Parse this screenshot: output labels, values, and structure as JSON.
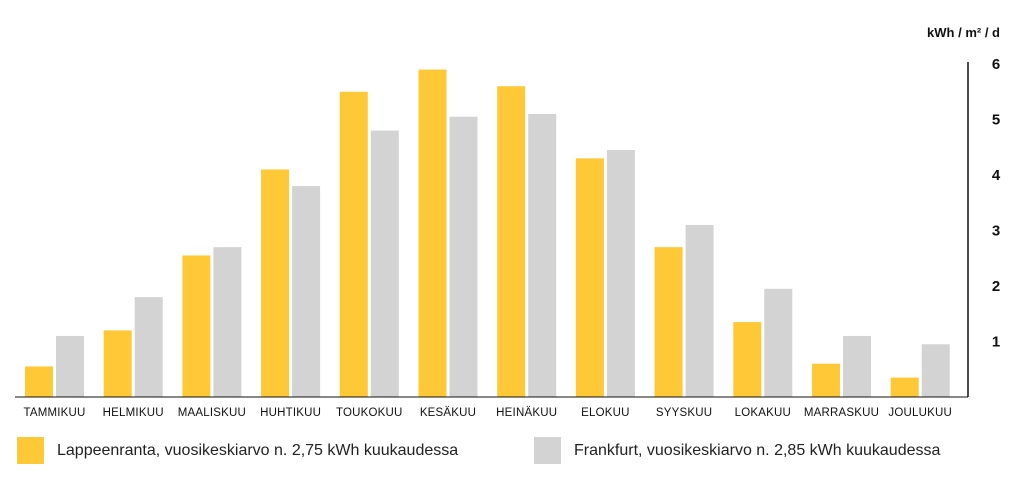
{
  "chart_data": {
    "type": "bar",
    "unit": "kWh / m² / d",
    "categories": [
      "TAMMIKUU",
      "HELMIKUU",
      "MAALISKUU",
      "HUHTIKUU",
      "TOUKOKUU",
      "KESÄKUU",
      "HEINÄKUU",
      "ELOKUU",
      "SYYSKUU",
      "LOKAKUU",
      "MARRASKUU",
      "JOULUKUU"
    ],
    "series": [
      {
        "name": "Lappeenranta, vuosikeskiarvo n. 2,75 kWh kuukaudessa",
        "color": "#ffc836",
        "values": [
          0.55,
          1.2,
          2.55,
          4.1,
          5.5,
          5.9,
          5.6,
          4.3,
          2.7,
          1.35,
          0.6,
          0.35
        ]
      },
      {
        "name": "Frankfurt, vuosikeskiarvo n. 2,85 kWh kuukaudessa",
        "color": "#d3d3d3",
        "values": [
          1.1,
          1.8,
          2.7,
          3.8,
          4.8,
          5.05,
          5.1,
          4.45,
          3.1,
          1.95,
          1.1,
          0.95
        ]
      }
    ],
    "yticks": [
      "1",
      "2",
      "3",
      "4",
      "5",
      "6"
    ],
    "ylim": [
      0,
      6
    ],
    "yaxis_position": "right",
    "grid": false,
    "legend_position": "bottom"
  }
}
